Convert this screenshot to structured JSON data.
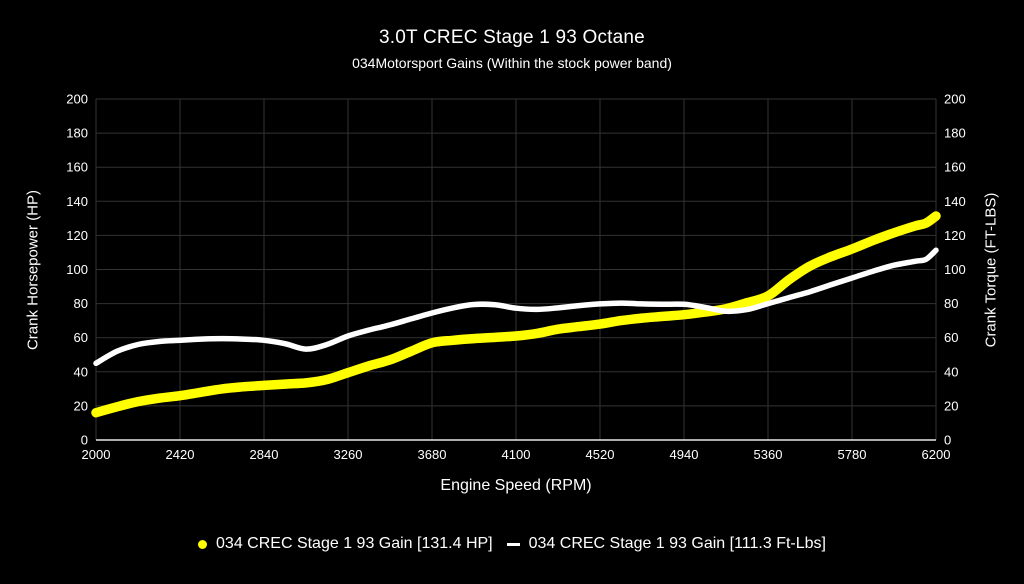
{
  "header": {
    "title": "3.0T CREC Stage 1 93 Octane",
    "subtitle": "034Motorsport Gains (Within the stock power band)"
  },
  "axes": {
    "x_label": "Engine Speed (RPM)",
    "y_left_label": "Crank Horsepower (HP)",
    "y_right_label": "Crank Torque (FT-LBS)"
  },
  "colors": {
    "background": "#000000",
    "grid": "#333333",
    "axis_line": "#e8e8e8",
    "hp_series": "#ffff00",
    "torque_series": "#ffffff",
    "text": "#ffffff"
  },
  "chart_data": {
    "type": "line",
    "title": "3.0T CREC Stage 1 93 Octane",
    "subtitle": "034Motorsport Gains (Within the stock power band)",
    "xlabel": "Engine Speed (RPM)",
    "ylabel_left": "Crank Horsepower (HP)",
    "ylabel_right": "Crank Torque (FT-LBS)",
    "xlim": [
      2000,
      6200
    ],
    "ylim": [
      0,
      200
    ],
    "x_ticks": [
      2000,
      2420,
      2840,
      3260,
      3680,
      4100,
      4520,
      4940,
      5360,
      5780,
      6200
    ],
    "y_ticks": [
      0,
      20,
      40,
      60,
      80,
      100,
      120,
      140,
      160,
      180,
      200
    ],
    "grid": true,
    "legend_position": "bottom",
    "series": [
      {
        "name": "034 CREC Stage 1 93 Gain [131.4 HP]",
        "axis": "left",
        "unit": "HP",
        "peak_value": 131.4,
        "color": "#ffff00",
        "marker": "dot",
        "points": [
          [
            2000,
            16
          ],
          [
            2105,
            19.5
          ],
          [
            2210,
            22.5
          ],
          [
            2315,
            24.5
          ],
          [
            2420,
            26
          ],
          [
            2525,
            28
          ],
          [
            2630,
            30
          ],
          [
            2735,
            31.2
          ],
          [
            2840,
            32
          ],
          [
            2945,
            32.8
          ],
          [
            3050,
            33.5
          ],
          [
            3155,
            35.5
          ],
          [
            3260,
            39.5
          ],
          [
            3365,
            43.5
          ],
          [
            3470,
            47
          ],
          [
            3575,
            52
          ],
          [
            3680,
            57
          ],
          [
            3785,
            58.5
          ],
          [
            3890,
            59.5
          ],
          [
            3995,
            60.2
          ],
          [
            4100,
            61
          ],
          [
            4205,
            62.5
          ],
          [
            4310,
            65
          ],
          [
            4415,
            66.5
          ],
          [
            4520,
            68
          ],
          [
            4625,
            70
          ],
          [
            4730,
            71.5
          ],
          [
            4835,
            72.5
          ],
          [
            4940,
            73.5
          ],
          [
            5045,
            75
          ],
          [
            5150,
            77
          ],
          [
            5255,
            80.5
          ],
          [
            5360,
            84.5
          ],
          [
            5465,
            94
          ],
          [
            5570,
            102
          ],
          [
            5675,
            107.5
          ],
          [
            5780,
            112
          ],
          [
            5885,
            117
          ],
          [
            5990,
            121.5
          ],
          [
            6095,
            125.5
          ],
          [
            6150,
            127.2
          ],
          [
            6200,
            131.4
          ]
        ]
      },
      {
        "name": "034 CREC Stage 1 93 Gain [111.3 Ft-Lbs]",
        "axis": "right",
        "unit": "Ft-Lbs",
        "peak_value": 111.3,
        "color": "#ffffff",
        "marker": "dash",
        "points": [
          [
            2000,
            45
          ],
          [
            2105,
            52
          ],
          [
            2210,
            56
          ],
          [
            2315,
            57.8
          ],
          [
            2420,
            58.5
          ],
          [
            2525,
            59.2
          ],
          [
            2630,
            59.5
          ],
          [
            2735,
            59.2
          ],
          [
            2840,
            58.5
          ],
          [
            2945,
            56.5
          ],
          [
            3050,
            53.3
          ],
          [
            3155,
            56
          ],
          [
            3260,
            61
          ],
          [
            3365,
            64.5
          ],
          [
            3470,
            67.5
          ],
          [
            3575,
            71
          ],
          [
            3680,
            74.5
          ],
          [
            3785,
            77.5
          ],
          [
            3890,
            79.5
          ],
          [
            3995,
            79.3
          ],
          [
            4100,
            77.3
          ],
          [
            4205,
            76.6
          ],
          [
            4310,
            77.5
          ],
          [
            4415,
            78.8
          ],
          [
            4520,
            79.8
          ],
          [
            4625,
            80.3
          ],
          [
            4730,
            79.8
          ],
          [
            4835,
            79.6
          ],
          [
            4940,
            79.6
          ],
          [
            5045,
            77.8
          ],
          [
            5150,
            75.5
          ],
          [
            5255,
            76.5
          ],
          [
            5360,
            80
          ],
          [
            5465,
            83.5
          ],
          [
            5570,
            87
          ],
          [
            5675,
            91
          ],
          [
            5780,
            95
          ],
          [
            5885,
            99
          ],
          [
            5990,
            102.5
          ],
          [
            6095,
            104.8
          ],
          [
            6150,
            106
          ],
          [
            6200,
            111.3
          ]
        ]
      }
    ]
  }
}
